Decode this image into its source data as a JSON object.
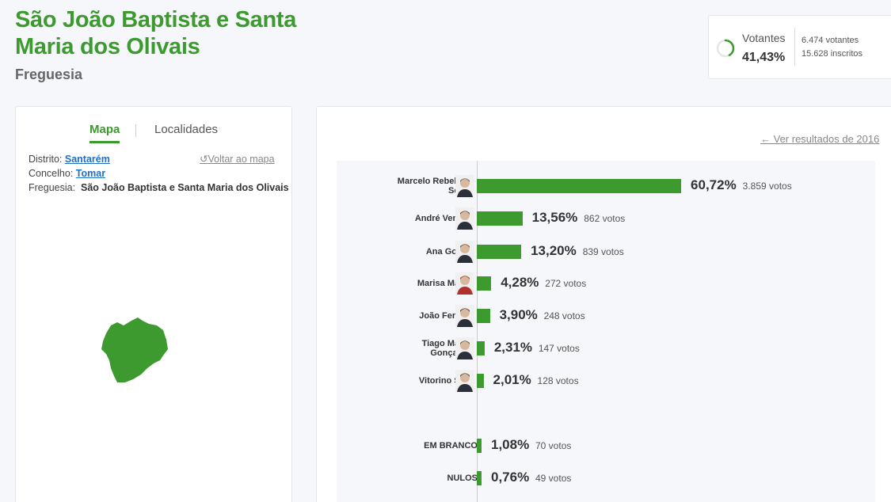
{
  "header": {
    "title": "São João Baptista e Santa Maria dos Olivais",
    "subtitle": "Freguesia"
  },
  "turnout": {
    "label": "Votantes",
    "percent": "41,43%",
    "percent_value": 41.43,
    "voters": "6.474 votantes",
    "registered": "15.628 inscritos",
    "ring_color": "#3c9a2f"
  },
  "left_panel": {
    "tabs": [
      {
        "label": "Mapa",
        "active": true
      },
      {
        "label": "Localidades",
        "active": false
      }
    ],
    "distrito_label": "Distrito:",
    "distrito_value": "Santarém",
    "concelho_label": "Concelho:",
    "concelho_value": "Tomar",
    "freguesia_label": "Freguesia:",
    "freguesia_value": "São João Baptista e Santa Maria dos Olivais",
    "back_to_map": "Voltar ao mapa",
    "map_color": "#3c9a2f"
  },
  "right_panel": {
    "results_2016_link": "Ver resultados de 2016"
  },
  "chart_data": {
    "type": "bar",
    "orientation": "horizontal",
    "bar_color": "#3c9a2f",
    "categories": [
      "Marcelo Rebelo de Sousa",
      "André Ventura",
      "Ana Gomes",
      "Marisa Matias",
      "João Ferreira",
      "Tiago Mayan Gonçalves",
      "Vitorino Silva",
      "EM BRANCO",
      "NULOS"
    ],
    "values": [
      60.72,
      13.56,
      13.2,
      4.28,
      3.9,
      2.31,
      2.01,
      1.08,
      0.76
    ],
    "value_labels": [
      "60,72%",
      "13,56%",
      "13,20%",
      "4,28%",
      "3,90%",
      "2,31%",
      "2,01%",
      "1,08%",
      "0,76%"
    ],
    "votes": [
      "3.859 votos",
      "862 votos",
      "839 votos",
      "272 votos",
      "248 votos",
      "147 votos",
      "128 votos",
      "70 votos",
      "49 votos"
    ],
    "name_lines": [
      [
        "Marcelo Rebelo de",
        "Sousa"
      ],
      [
        "André Ventura"
      ],
      [
        "Ana Gomes"
      ],
      [
        "Marisa Matias"
      ],
      [
        "João Ferreira"
      ],
      [
        "Tiago Mayan",
        "Gonçalves"
      ],
      [
        "Vitorino Silva"
      ],
      [
        "EM BRANCO"
      ],
      [
        "NULOS"
      ]
    ],
    "has_avatar": [
      true,
      true,
      true,
      true,
      true,
      true,
      true,
      false,
      false
    ]
  }
}
